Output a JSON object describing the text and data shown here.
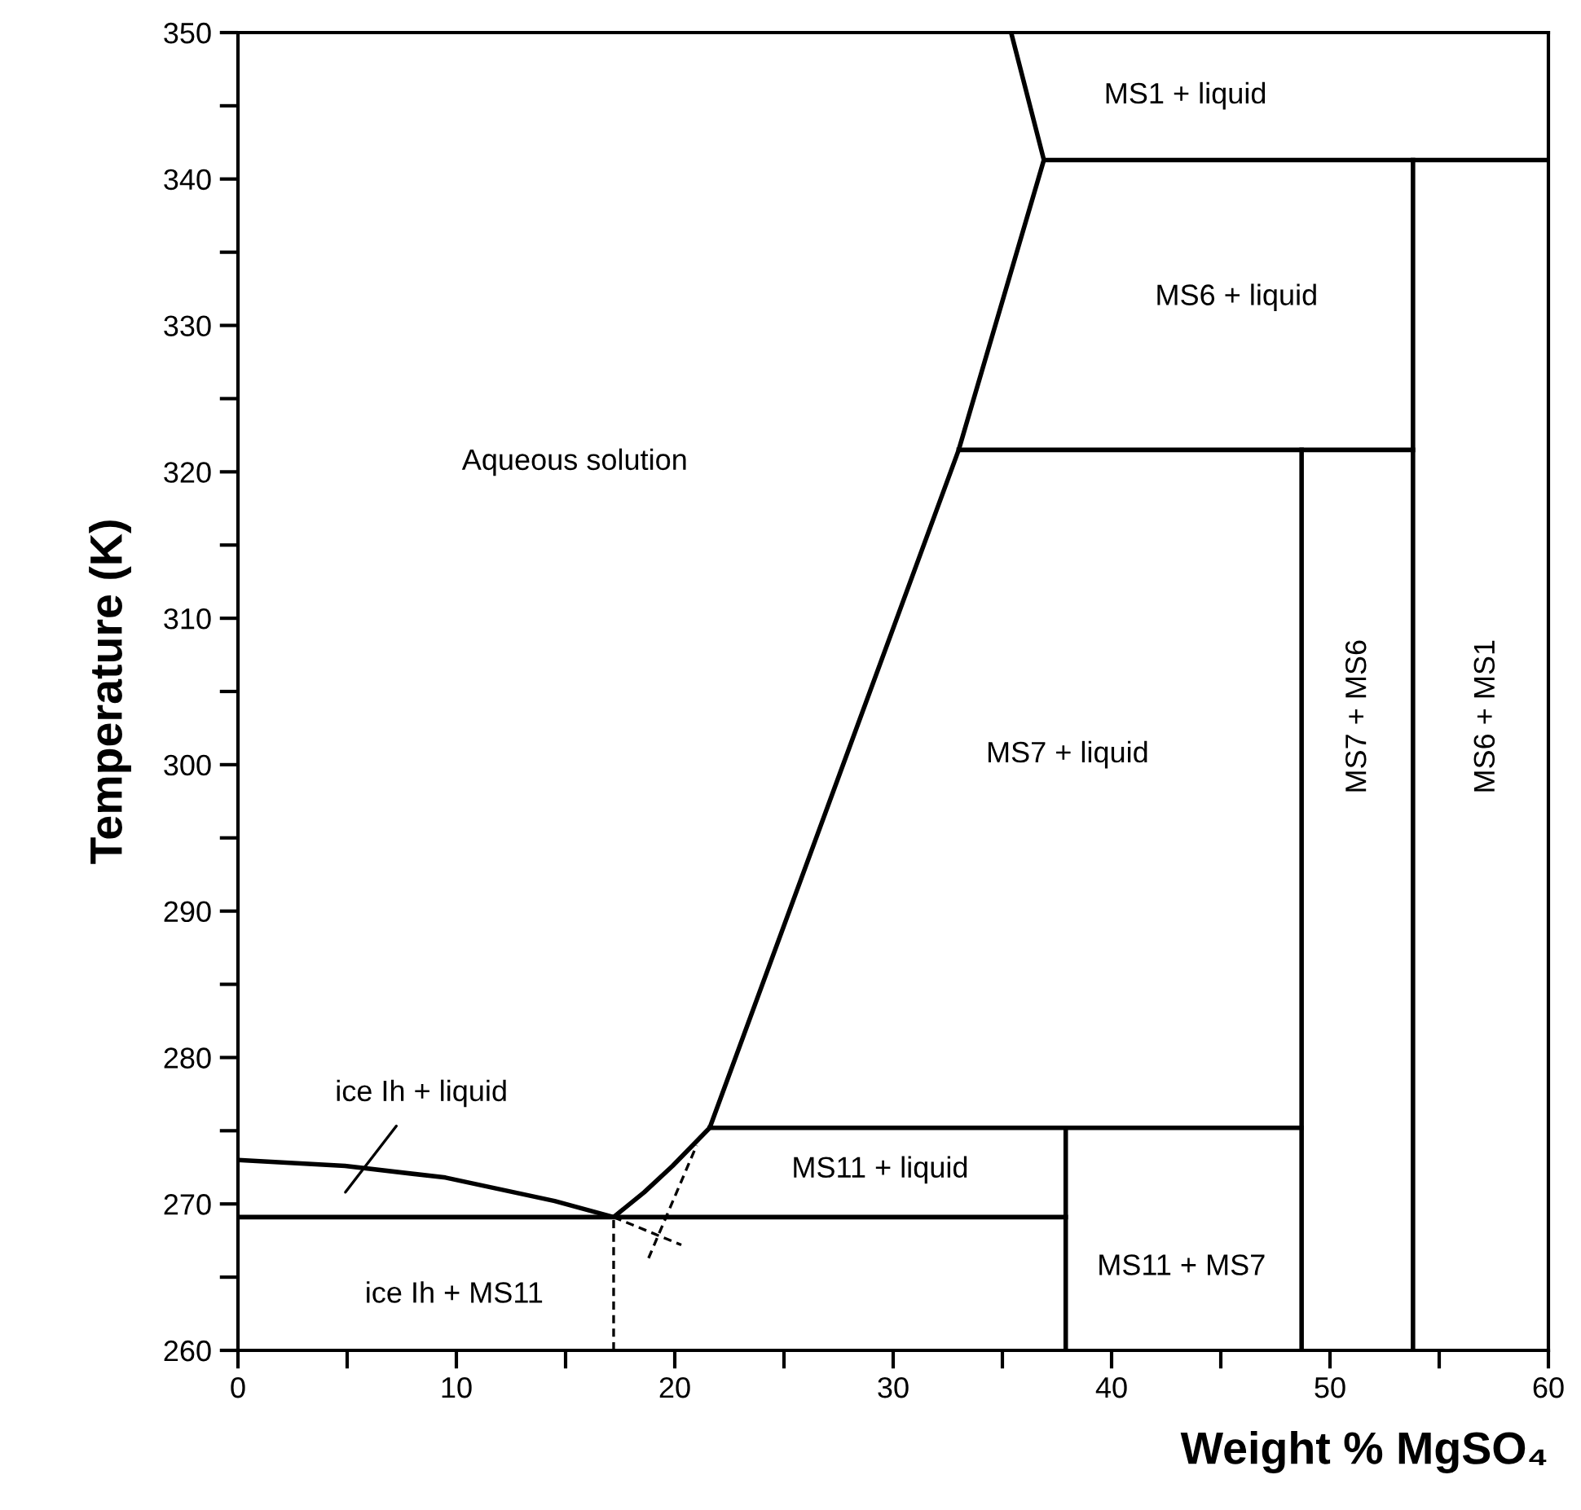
{
  "chart_data": {
    "type": "line",
    "xlabel": "Weight % MgSO₄",
    "ylabel": "Temperature (K)",
    "xlim": [
      0,
      60
    ],
    "ylim": [
      260,
      350
    ],
    "xticks": [
      0,
      {
        "value": 5,
        "label": null
      },
      10,
      {
        "value": 15,
        "label": null
      },
      20,
      {
        "value": 25,
        "label": null
      },
      30,
      {
        "value": 35,
        "label": null
      },
      40,
      {
        "value": 45,
        "label": null
      },
      50,
      {
        "value": 55,
        "label": null
      },
      60
    ],
    "yticks": [
      260,
      {
        "value": 265,
        "label": null
      },
      270,
      {
        "value": 275,
        "label": null
      },
      280,
      {
        "value": 285,
        "label": null
      },
      290,
      {
        "value": 295,
        "label": null
      },
      300,
      {
        "value": 305,
        "label": null
      },
      310,
      {
        "value": 315,
        "label": null
      },
      320,
      {
        "value": 325,
        "label": null
      },
      330,
      {
        "value": 335,
        "label": null
      },
      340,
      {
        "value": 345,
        "label": null
      },
      350
    ],
    "grid": false,
    "legend": false,
    "marker": "none",
    "series": [
      {
        "color": "#000000",
        "line_style": "solid",
        "x": [
          0,
          4.9,
          9.5,
          14.5,
          17.2,
          18.6,
          19.9,
          21.6,
          33.0,
          36.9,
          35.4
        ],
        "values": [
          273.0,
          272.6,
          271.8,
          270.2,
          269.1,
          270.8,
          272.6,
          275.2,
          321.5,
          341.3,
          350
        ]
      },
      {
        "type": "line",
        "color": "#000000",
        "line_style": "solid",
        "x": [
          36.9,
          60
        ],
        "values": [
          341.3,
          341.3
        ]
      },
      {
        "type": "line",
        "color": "#000000",
        "line_style": "solid",
        "x": [
          33.0,
          53.8
        ],
        "values": [
          321.5,
          321.5
        ]
      },
      {
        "type": "line",
        "color": "#000000",
        "line_style": "solid",
        "x": [
          21.6,
          48.7
        ],
        "values": [
          275.2,
          275.2
        ]
      },
      {
        "type": "line",
        "color": "#000000",
        "line_style": "solid",
        "x": [
          0,
          37.9
        ],
        "values": [
          269.1,
          269.1
        ]
      },
      {
        "type": "line",
        "color": "#000000",
        "line_style": "solid",
        "x": [
          37.9,
          37.9
        ],
        "values": [
          260,
          275.2
        ]
      },
      {
        "type": "line",
        "color": "#000000",
        "line_style": "solid",
        "x": [
          48.7,
          48.7
        ],
        "values": [
          260,
          321.5
        ]
      },
      {
        "type": "line",
        "color": "#000000",
        "line_style": "solid",
        "x": [
          53.8,
          53.8
        ],
        "values": [
          260,
          341.3
        ]
      },
      {
        "type": "line",
        "color": "#000000",
        "line_style": "dashed",
        "x": [
          17.2,
          17.2
        ],
        "values": [
          260,
          269.1
        ]
      },
      {
        "type": "line",
        "color": "#000000",
        "line_style": "dashed",
        "x": [
          17.2,
          20.3
        ],
        "values": [
          269.1,
          267.2
        ]
      },
      {
        "type": "line",
        "color": "#000000",
        "line_style": "dashed",
        "x": [
          18.8,
          21.0
        ],
        "values": [
          266.3,
          274.0
        ]
      }
    ],
    "annotations": [
      "Aqueous solution",
      "MS1 + liquid",
      "MS6 + liquid",
      "MS7 + liquid",
      "MS7 + MS6",
      "MS6 + MS1",
      "MS11 + liquid",
      "MS11 + MS7",
      "ice Ih + MS11",
      "ice Ih + liquid"
    ]
  }
}
